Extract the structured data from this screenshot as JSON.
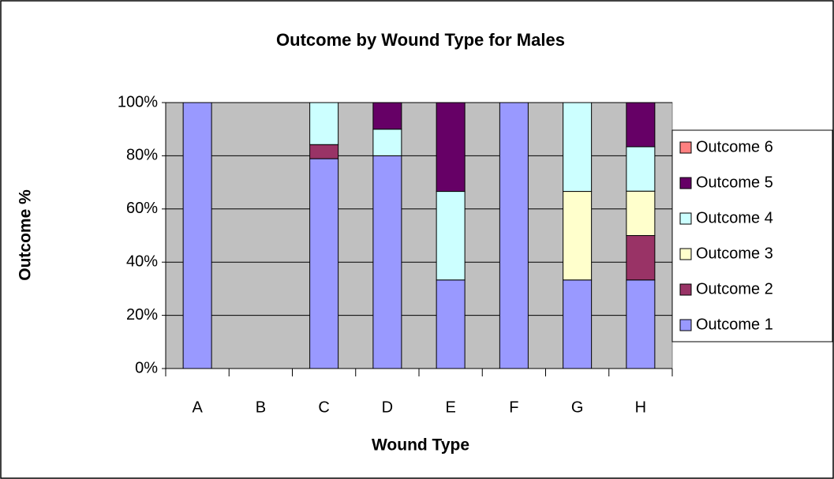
{
  "chart_data": {
    "type": "stacked_bar",
    "title": "Outcome by Wound Type for Males",
    "x_label": "Wound Type",
    "y_label": "Outcome %",
    "categories": [
      "A",
      "B",
      "C",
      "D",
      "E",
      "F",
      "G",
      "H"
    ],
    "series": [
      {
        "name": "Outcome 1",
        "color": "#9999ff",
        "values": [
          100,
          0,
          78.9,
          80,
          33.3,
          100,
          33.3,
          33.3
        ]
      },
      {
        "name": "Outcome 2",
        "color": "#993366",
        "values": [
          0,
          0,
          5.3,
          0,
          0,
          0,
          0,
          16.7
        ]
      },
      {
        "name": "Outcome 3",
        "color": "#ffffcc",
        "values": [
          0,
          0,
          0,
          0,
          0,
          0,
          33.3,
          16.7
        ]
      },
      {
        "name": "Outcome 4",
        "color": "#ccffff",
        "values": [
          0,
          0,
          15.8,
          10,
          33.3,
          0,
          33.4,
          16.7
        ]
      },
      {
        "name": "Outcome 5",
        "color": "#660066",
        "values": [
          0,
          0,
          0,
          10,
          33.4,
          0,
          0,
          16.6
        ]
      },
      {
        "name": "Outcome 6",
        "color": "#ff8080",
        "values": [
          0,
          0,
          0,
          0,
          0,
          0,
          0,
          0
        ]
      }
    ],
    "ylim": [
      0,
      100
    ],
    "yticks": [
      {
        "value": 0,
        "label": "0%"
      },
      {
        "value": 20,
        "label": "20%"
      },
      {
        "value": 40,
        "label": "40%"
      },
      {
        "value": 60,
        "label": "60%"
      },
      {
        "value": 80,
        "label": "80%"
      },
      {
        "value": 100,
        "label": "100%"
      }
    ],
    "grid": true,
    "legend": "right",
    "plot_background": "#c0c0c0"
  }
}
